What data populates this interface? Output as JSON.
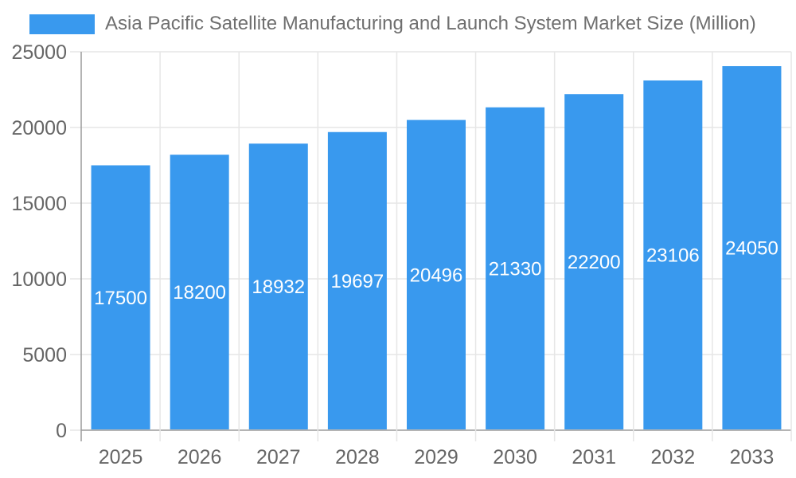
{
  "chart_data": {
    "type": "bar",
    "title": "Asia Pacific Satellite Manufacturing and Launch System Market Size (Million)",
    "categories": [
      "2025",
      "2026",
      "2027",
      "2028",
      "2029",
      "2030",
      "2031",
      "2032",
      "2033"
    ],
    "values": [
      17500,
      18200,
      18932,
      19697,
      20496,
      21330,
      22200,
      23106,
      24050
    ],
    "xlabel": "",
    "ylabel": "",
    "ylim": [
      0,
      25000
    ],
    "yticks": [
      0,
      5000,
      10000,
      15000,
      20000,
      25000
    ],
    "grid": true,
    "legend_position": "top-left",
    "bar_color": "#3999ee",
    "value_label_color": "#ffffff",
    "gridline_color": "#e6e6e6",
    "axis_line_color": "#9b9b9b",
    "tick_label_color": "#666666",
    "title_color": "#6f6f6f"
  }
}
